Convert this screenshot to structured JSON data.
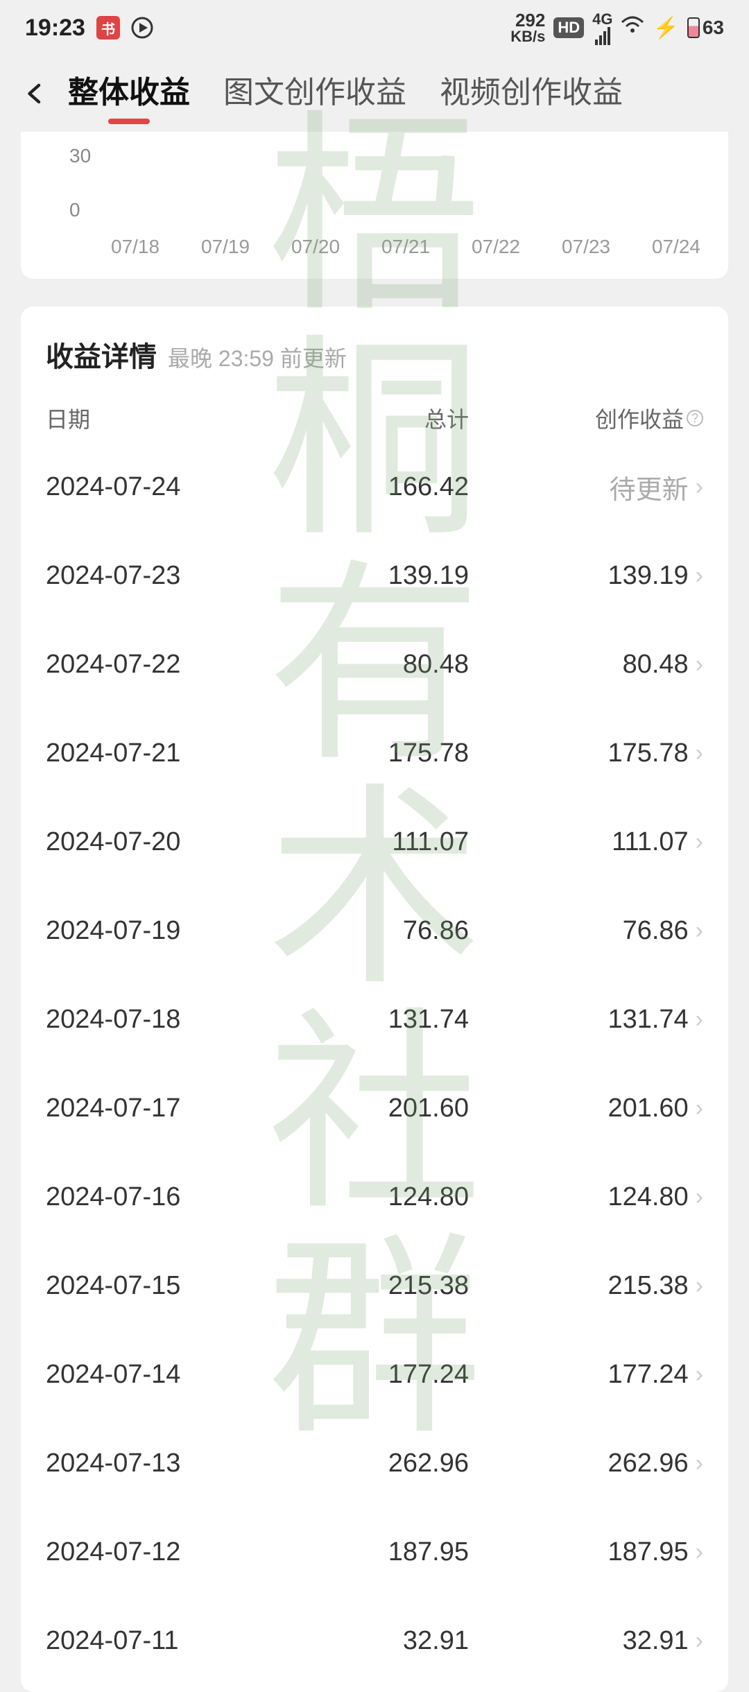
{
  "status_bar": {
    "time": "19:23",
    "kbs_value": "292",
    "kbs_unit": "KB/s",
    "hd_label": "HD",
    "network_label": "4G",
    "battery_level": "63"
  },
  "nav": {
    "tabs": [
      {
        "label": "整体收益",
        "active": true
      },
      {
        "label": "图文创作收益",
        "active": false
      },
      {
        "label": "视频创作收益",
        "active": false
      }
    ]
  },
  "chart": {
    "y_ticks": [
      "30",
      "0"
    ],
    "x_ticks": [
      "07/18",
      "07/19",
      "07/20",
      "07/21",
      "07/22",
      "07/23",
      "07/24"
    ],
    "y_max": 30,
    "background_color": "#ffffff",
    "tick_color": "#999999",
    "tick_fontsize": 28
  },
  "details": {
    "title": "收益详情",
    "subtitle": "最晚 23:59 前更新",
    "columns": {
      "date": "日期",
      "total": "总计",
      "creative": "创作收益"
    },
    "pending_label": "待更新",
    "rows": [
      {
        "date": "2024-07-24",
        "total": "166.42",
        "creative": "待更新",
        "pending": true
      },
      {
        "date": "2024-07-23",
        "total": "139.19",
        "creative": "139.19",
        "pending": false
      },
      {
        "date": "2024-07-22",
        "total": "80.48",
        "creative": "80.48",
        "pending": false
      },
      {
        "date": "2024-07-21",
        "total": "175.78",
        "creative": "175.78",
        "pending": false
      },
      {
        "date": "2024-07-20",
        "total": "111.07",
        "creative": "111.07",
        "pending": false
      },
      {
        "date": "2024-07-19",
        "total": "76.86",
        "creative": "76.86",
        "pending": false
      },
      {
        "date": "2024-07-18",
        "total": "131.74",
        "creative": "131.74",
        "pending": false
      },
      {
        "date": "2024-07-17",
        "total": "201.60",
        "creative": "201.60",
        "pending": false
      },
      {
        "date": "2024-07-16",
        "total": "124.80",
        "creative": "124.80",
        "pending": false
      },
      {
        "date": "2024-07-15",
        "total": "215.38",
        "creative": "215.38",
        "pending": false
      },
      {
        "date": "2024-07-14",
        "total": "177.24",
        "creative": "177.24",
        "pending": false
      },
      {
        "date": "2024-07-13",
        "total": "262.96",
        "creative": "262.96",
        "pending": false
      },
      {
        "date": "2024-07-12",
        "total": "187.95",
        "creative": "187.95",
        "pending": false
      },
      {
        "date": "2024-07-11",
        "total": "32.91",
        "creative": "32.91",
        "pending": false
      }
    ]
  },
  "watermark": {
    "chars": [
      "梧",
      "桐",
      "有",
      "术",
      "社",
      "群"
    ],
    "color": "rgba(120,160,110,0.22)",
    "fontsize": 310
  },
  "colors": {
    "page_bg": "#f0f0f0",
    "card_bg": "#ffffff",
    "text_primary": "#222222",
    "text_secondary": "#666666",
    "text_muted": "#aaaaaa",
    "accent_red": "#e64545",
    "chevron": "#cccccc"
  }
}
